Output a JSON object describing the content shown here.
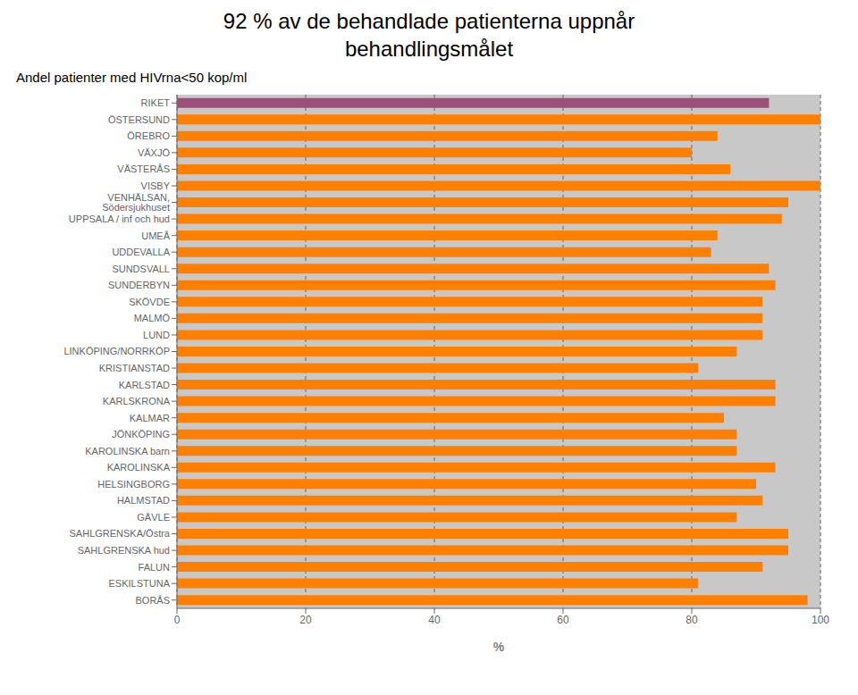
{
  "chart_data": {
    "type": "bar",
    "orientation": "horizontal",
    "title": "92 % av de behandlade patienterna uppnår\nbehandlingsmålet",
    "subtitle": "Andel patienter med HIVrna<50 kop/ml",
    "xlabel": "%",
    "categories": [
      "RIKET",
      "ÖSTERSUND",
      "ÖREBRO",
      "VÄXJÖ",
      "VÄSTERÅS",
      "VISBY",
      "VENHÄLSAN, Södersjukhuset",
      "UPPSALA / inf och hud",
      "UMEÅ",
      "UDDEVALLA",
      "SUNDSVALL",
      "SUNDERBYN",
      "SKÖVDE",
      "MALMÖ",
      "LUND",
      "LINKÖPING/NORRKÖP",
      "KRISTIANSTAD",
      "KARLSTAD",
      "KARLSKRONA",
      "KALMAR",
      "JÖNKÖPING",
      "KAROLINSKA barn",
      "KAROLINSKA",
      "HELSINGBORG",
      "HALMSTAD",
      "GÄVLE",
      "SAHLGRENSKA/Östra",
      "SAHLGRENSKA hud",
      "FALUN",
      "ESKILSTUNA",
      "BORÅS"
    ],
    "values": [
      92,
      100,
      84,
      80,
      86,
      100,
      95,
      94,
      84,
      83,
      92,
      93,
      91,
      91,
      91,
      87,
      81,
      93,
      93,
      85,
      87,
      87,
      93,
      90,
      91,
      87,
      95,
      95,
      91,
      81,
      98
    ],
    "colors": [
      "#9B4F7A",
      "#FF8000",
      "#FF8000",
      "#FF8000",
      "#FF8000",
      "#FF8000",
      "#FF8000",
      "#FF8000",
      "#FF8000",
      "#FF8000",
      "#FF8000",
      "#FF8000",
      "#FF8000",
      "#FF8000",
      "#FF8000",
      "#FF8000",
      "#FF8000",
      "#FF8000",
      "#FF8000",
      "#FF8000",
      "#FF8000",
      "#FF8000",
      "#FF8000",
      "#FF8000",
      "#FF8000",
      "#FF8000",
      "#FF8000",
      "#FF8000",
      "#FF8000",
      "#FF8000",
      "#FF8000"
    ],
    "xlim": [
      0,
      100
    ],
    "xticks": [
      0,
      20,
      40,
      60,
      80,
      100
    ],
    "grid": true
  }
}
